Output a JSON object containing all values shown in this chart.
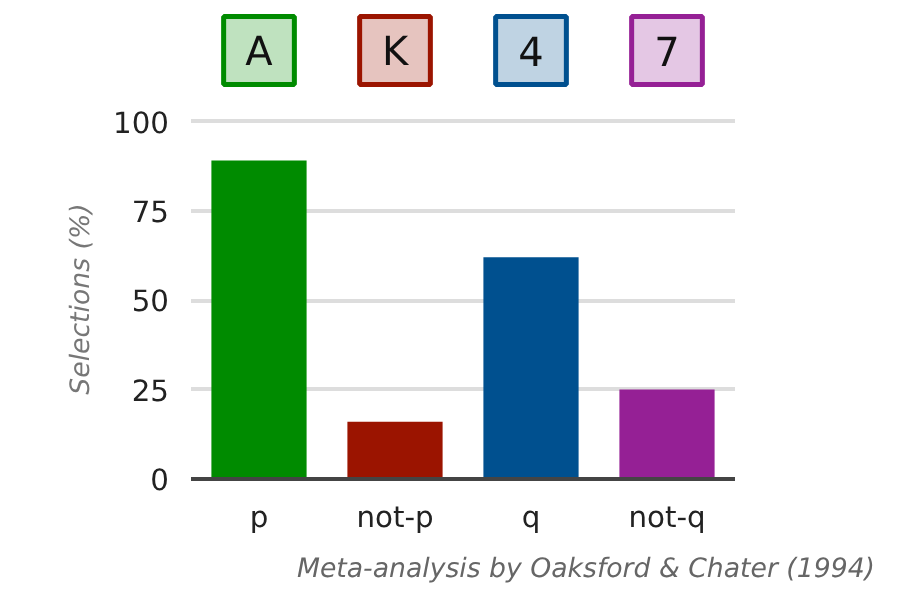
{
  "chart_data": {
    "type": "bar",
    "ylabel": "Selections (%)",
    "categories": [
      "p",
      "not-p",
      "q",
      "not-q"
    ],
    "values": [
      89,
      16,
      62,
      25
    ],
    "colors": [
      "#008b00",
      "#9b1400",
      "#00508f",
      "#952095"
    ],
    "ylim": [
      0,
      100
    ],
    "yticks": [
      0,
      25,
      50,
      75,
      100
    ],
    "grid": "y",
    "annotations": [
      "A",
      "K",
      "4",
      "7",
      "Meta-analysis by Oaksford & Chater (1994)"
    ]
  }
}
